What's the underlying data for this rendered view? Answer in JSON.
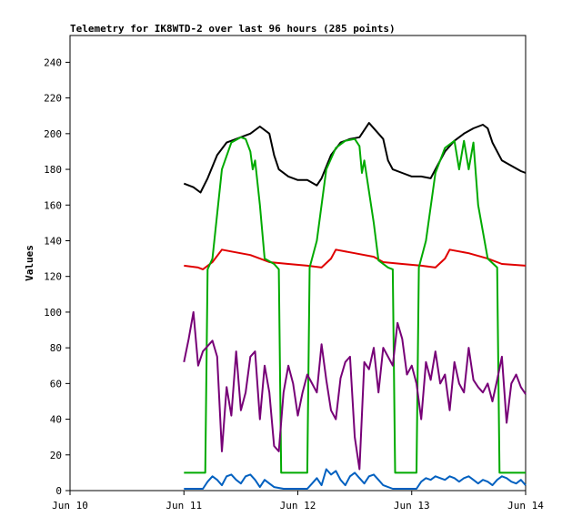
{
  "chart_data": {
    "type": "line",
    "title": "Telemetry for IK8WTD-2 over last 96 hours (285 points)",
    "ylabel": "Values",
    "xlabel": "",
    "ylim": [
      0,
      255
    ],
    "yticks": [
      0,
      20,
      40,
      60,
      80,
      100,
      120,
      140,
      160,
      180,
      200,
      220,
      240
    ],
    "xrange": [
      "2023-06-10T00:00",
      "2023-06-14T00:00"
    ],
    "xticks": [
      {
        "label": "Jun 10",
        "t": "2023-06-10T00:00"
      },
      {
        "label": "Jun 11",
        "t": "2023-06-11T00:00"
      },
      {
        "label": "Jun 12",
        "t": "2023-06-12T00:00"
      },
      {
        "label": "Jun 13",
        "t": "2023-06-13T00:00"
      },
      {
        "label": "Jun 14",
        "t": "2023-06-14T00:00"
      }
    ],
    "grid": false,
    "series": [
      {
        "color": "#000000",
        "points": [
          [
            "2023-06-11T00:00",
            172
          ],
          [
            "2023-06-11T02:00",
            170
          ],
          [
            "2023-06-11T03:30",
            167
          ],
          [
            "2023-06-11T05:00",
            175
          ],
          [
            "2023-06-11T07:00",
            188
          ],
          [
            "2023-06-11T09:00",
            195
          ],
          [
            "2023-06-11T11:00",
            197
          ],
          [
            "2023-06-11T14:00",
            200
          ],
          [
            "2023-06-11T16:00",
            204
          ],
          [
            "2023-06-11T18:00",
            200
          ],
          [
            "2023-06-11T19:00",
            188
          ],
          [
            "2023-06-11T20:00",
            180
          ],
          [
            "2023-06-11T22:00",
            176
          ],
          [
            "2023-06-12T00:00",
            174
          ],
          [
            "2023-06-12T02:00",
            174
          ],
          [
            "2023-06-12T04:00",
            171
          ],
          [
            "2023-06-12T05:00",
            175
          ],
          [
            "2023-06-12T07:00",
            188
          ],
          [
            "2023-06-12T09:00",
            195
          ],
          [
            "2023-06-12T11:00",
            197
          ],
          [
            "2023-06-12T13:00",
            198
          ],
          [
            "2023-06-12T15:00",
            206
          ],
          [
            "2023-06-12T17:00",
            200
          ],
          [
            "2023-06-12T18:00",
            197
          ],
          [
            "2023-06-12T19:00",
            185
          ],
          [
            "2023-06-12T20:00",
            180
          ],
          [
            "2023-06-12T22:00",
            178
          ],
          [
            "2023-06-13T00:00",
            176
          ],
          [
            "2023-06-13T02:00",
            176
          ],
          [
            "2023-06-13T04:00",
            175
          ],
          [
            "2023-06-13T05:00",
            180
          ],
          [
            "2023-06-13T07:00",
            190
          ],
          [
            "2023-06-13T09:00",
            196
          ],
          [
            "2023-06-13T11:00",
            200
          ],
          [
            "2023-06-13T13:00",
            203
          ],
          [
            "2023-06-13T15:00",
            205
          ],
          [
            "2023-06-13T16:00",
            203
          ],
          [
            "2023-06-13T17:00",
            195
          ],
          [
            "2023-06-13T19:00",
            185
          ],
          [
            "2023-06-13T21:00",
            182
          ],
          [
            "2023-06-13T23:00",
            179
          ],
          [
            "2023-06-14T00:00",
            178
          ]
        ]
      },
      {
        "color": "#e00000",
        "points": [
          [
            "2023-06-11T00:00",
            126
          ],
          [
            "2023-06-11T03:00",
            125
          ],
          [
            "2023-06-11T04:00",
            124
          ],
          [
            "2023-06-11T06:00",
            128
          ],
          [
            "2023-06-11T08:00",
            135
          ],
          [
            "2023-06-11T10:00",
            134
          ],
          [
            "2023-06-11T14:00",
            132
          ],
          [
            "2023-06-11T16:00",
            130
          ],
          [
            "2023-06-11T18:00",
            128
          ],
          [
            "2023-06-11T22:00",
            127
          ],
          [
            "2023-06-12T02:00",
            126
          ],
          [
            "2023-06-12T05:00",
            125
          ],
          [
            "2023-06-12T07:00",
            130
          ],
          [
            "2023-06-12T08:00",
            135
          ],
          [
            "2023-06-12T12:00",
            133
          ],
          [
            "2023-06-12T16:00",
            131
          ],
          [
            "2023-06-12T18:00",
            128
          ],
          [
            "2023-06-12T22:00",
            127
          ],
          [
            "2023-06-13T02:00",
            126
          ],
          [
            "2023-06-13T05:00",
            125
          ],
          [
            "2023-06-13T07:00",
            130
          ],
          [
            "2023-06-13T08:00",
            135
          ],
          [
            "2023-06-13T12:00",
            133
          ],
          [
            "2023-06-13T16:00",
            130
          ],
          [
            "2023-06-13T19:00",
            127
          ],
          [
            "2023-06-14T00:00",
            126
          ]
        ]
      },
      {
        "color": "#00aa00",
        "points": [
          [
            "2023-06-11T00:00",
            10
          ],
          [
            "2023-06-11T04:30",
            10
          ],
          [
            "2023-06-11T05:00",
            124
          ],
          [
            "2023-06-11T06:00",
            130
          ],
          [
            "2023-06-11T08:00",
            180
          ],
          [
            "2023-06-11T10:00",
            195
          ],
          [
            "2023-06-11T12:00",
            198
          ],
          [
            "2023-06-11T13:00",
            197
          ],
          [
            "2023-06-11T14:00",
            190
          ],
          [
            "2023-06-11T14:30",
            180
          ],
          [
            "2023-06-11T15:00",
            185
          ],
          [
            "2023-06-11T16:00",
            160
          ],
          [
            "2023-06-11T17:00",
            130
          ],
          [
            "2023-06-11T19:00",
            127
          ],
          [
            "2023-06-11T20:00",
            124
          ],
          [
            "2023-06-11T20:30",
            10
          ],
          [
            "2023-06-12T02:00",
            10
          ],
          [
            "2023-06-12T02:30",
            125
          ],
          [
            "2023-06-12T04:00",
            140
          ],
          [
            "2023-06-12T06:00",
            180
          ],
          [
            "2023-06-12T08:00",
            192
          ],
          [
            "2023-06-12T10:00",
            196
          ],
          [
            "2023-06-12T12:00",
            197
          ],
          [
            "2023-06-12T13:00",
            193
          ],
          [
            "2023-06-12T13:30",
            178
          ],
          [
            "2023-06-12T14:00",
            185
          ],
          [
            "2023-06-12T16:00",
            150
          ],
          [
            "2023-06-12T17:00",
            129
          ],
          [
            "2023-06-12T19:00",
            125
          ],
          [
            "2023-06-12T20:00",
            124
          ],
          [
            "2023-06-12T20:30",
            10
          ],
          [
            "2023-06-13T01:00",
            10
          ],
          [
            "2023-06-13T01:30",
            125
          ],
          [
            "2023-06-13T03:00",
            140
          ],
          [
            "2023-06-13T05:00",
            178
          ],
          [
            "2023-06-13T07:00",
            192
          ],
          [
            "2023-06-13T09:00",
            196
          ],
          [
            "2023-06-13T10:00",
            180
          ],
          [
            "2023-06-13T11:00",
            196
          ],
          [
            "2023-06-13T12:00",
            180
          ],
          [
            "2023-06-13T13:00",
            195
          ],
          [
            "2023-06-13T14:00",
            160
          ],
          [
            "2023-06-13T16:00",
            130
          ],
          [
            "2023-06-13T18:00",
            125
          ],
          [
            "2023-06-13T18:30",
            10
          ],
          [
            "2023-06-14T00:00",
            10
          ]
        ]
      },
      {
        "color": "#770077",
        "points": [
          [
            "2023-06-11T00:00",
            72
          ],
          [
            "2023-06-11T01:00",
            85
          ],
          [
            "2023-06-11T02:00",
            100
          ],
          [
            "2023-06-11T03:00",
            70
          ],
          [
            "2023-06-11T04:00",
            78
          ],
          [
            "2023-06-11T06:00",
            84
          ],
          [
            "2023-06-11T07:00",
            75
          ],
          [
            "2023-06-11T08:00",
            22
          ],
          [
            "2023-06-11T09:00",
            58
          ],
          [
            "2023-06-11T10:00",
            42
          ],
          [
            "2023-06-11T11:00",
            78
          ],
          [
            "2023-06-11T12:00",
            45
          ],
          [
            "2023-06-11T13:00",
            55
          ],
          [
            "2023-06-11T14:00",
            75
          ],
          [
            "2023-06-11T15:00",
            78
          ],
          [
            "2023-06-11T16:00",
            40
          ],
          [
            "2023-06-11T17:00",
            70
          ],
          [
            "2023-06-11T18:00",
            55
          ],
          [
            "2023-06-11T19:00",
            25
          ],
          [
            "2023-06-11T20:00",
            22
          ],
          [
            "2023-06-11T21:00",
            55
          ],
          [
            "2023-06-11T22:00",
            70
          ],
          [
            "2023-06-11T23:00",
            60
          ],
          [
            "2023-06-12T00:00",
            42
          ],
          [
            "2023-06-12T01:00",
            55
          ],
          [
            "2023-06-12T02:00",
            65
          ],
          [
            "2023-06-12T03:00",
            60
          ],
          [
            "2023-06-12T04:00",
            55
          ],
          [
            "2023-06-12T05:00",
            82
          ],
          [
            "2023-06-12T06:00",
            62
          ],
          [
            "2023-06-12T07:00",
            45
          ],
          [
            "2023-06-12T08:00",
            40
          ],
          [
            "2023-06-12T09:00",
            63
          ],
          [
            "2023-06-12T10:00",
            72
          ],
          [
            "2023-06-12T11:00",
            75
          ],
          [
            "2023-06-12T12:00",
            30
          ],
          [
            "2023-06-12T13:00",
            12
          ],
          [
            "2023-06-12T14:00",
            72
          ],
          [
            "2023-06-12T15:00",
            68
          ],
          [
            "2023-06-12T16:00",
            80
          ],
          [
            "2023-06-12T17:00",
            55
          ],
          [
            "2023-06-12T18:00",
            80
          ],
          [
            "2023-06-12T19:00",
            75
          ],
          [
            "2023-06-12T20:00",
            70
          ],
          [
            "2023-06-12T21:00",
            94
          ],
          [
            "2023-06-12T22:00",
            85
          ],
          [
            "2023-06-12T23:00",
            65
          ],
          [
            "2023-06-13T00:00",
            70
          ],
          [
            "2023-06-13T01:00",
            60
          ],
          [
            "2023-06-13T02:00",
            40
          ],
          [
            "2023-06-13T03:00",
            72
          ],
          [
            "2023-06-13T04:00",
            62
          ],
          [
            "2023-06-13T05:00",
            78
          ],
          [
            "2023-06-13T06:00",
            60
          ],
          [
            "2023-06-13T07:00",
            65
          ],
          [
            "2023-06-13T08:00",
            45
          ],
          [
            "2023-06-13T09:00",
            72
          ],
          [
            "2023-06-13T10:00",
            60
          ],
          [
            "2023-06-13T11:00",
            55
          ],
          [
            "2023-06-13T12:00",
            80
          ],
          [
            "2023-06-13T13:00",
            62
          ],
          [
            "2023-06-13T14:00",
            58
          ],
          [
            "2023-06-13T15:00",
            55
          ],
          [
            "2023-06-13T16:00",
            60
          ],
          [
            "2023-06-13T17:00",
            50
          ],
          [
            "2023-06-13T18:00",
            62
          ],
          [
            "2023-06-13T19:00",
            75
          ],
          [
            "2023-06-13T20:00",
            38
          ],
          [
            "2023-06-13T21:00",
            60
          ],
          [
            "2023-06-13T22:00",
            65
          ],
          [
            "2023-06-13T23:00",
            58
          ],
          [
            "2023-06-14T00:00",
            54
          ]
        ]
      },
      {
        "color": "#0060c0",
        "points": [
          [
            "2023-06-11T00:00",
            1
          ],
          [
            "2023-06-11T04:00",
            1
          ],
          [
            "2023-06-11T05:00",
            5
          ],
          [
            "2023-06-11T06:00",
            8
          ],
          [
            "2023-06-11T07:00",
            6
          ],
          [
            "2023-06-11T08:00",
            3
          ],
          [
            "2023-06-11T09:00",
            8
          ],
          [
            "2023-06-11T10:00",
            9
          ],
          [
            "2023-06-11T11:00",
            6
          ],
          [
            "2023-06-11T12:00",
            4
          ],
          [
            "2023-06-11T13:00",
            8
          ],
          [
            "2023-06-11T14:00",
            9
          ],
          [
            "2023-06-11T15:00",
            6
          ],
          [
            "2023-06-11T16:00",
            2
          ],
          [
            "2023-06-11T17:00",
            6
          ],
          [
            "2023-06-11T18:00",
            4
          ],
          [
            "2023-06-11T19:00",
            2
          ],
          [
            "2023-06-11T21:00",
            1
          ],
          [
            "2023-06-12T02:00",
            1
          ],
          [
            "2023-06-12T03:00",
            4
          ],
          [
            "2023-06-12T04:00",
            7
          ],
          [
            "2023-06-12T05:00",
            3
          ],
          [
            "2023-06-12T06:00",
            12
          ],
          [
            "2023-06-12T07:00",
            9
          ],
          [
            "2023-06-12T08:00",
            11
          ],
          [
            "2023-06-12T09:00",
            6
          ],
          [
            "2023-06-12T10:00",
            3
          ],
          [
            "2023-06-12T11:00",
            8
          ],
          [
            "2023-06-12T12:00",
            10
          ],
          [
            "2023-06-12T13:00",
            7
          ],
          [
            "2023-06-12T14:00",
            4
          ],
          [
            "2023-06-12T15:00",
            8
          ],
          [
            "2023-06-12T16:00",
            9
          ],
          [
            "2023-06-12T17:00",
            6
          ],
          [
            "2023-06-12T18:00",
            3
          ],
          [
            "2023-06-12T20:00",
            1
          ],
          [
            "2023-06-13T01:00",
            1
          ],
          [
            "2023-06-13T02:00",
            5
          ],
          [
            "2023-06-13T03:00",
            7
          ],
          [
            "2023-06-13T04:00",
            6
          ],
          [
            "2023-06-13T05:00",
            8
          ],
          [
            "2023-06-13T06:00",
            7
          ],
          [
            "2023-06-13T07:00",
            6
          ],
          [
            "2023-06-13T08:00",
            8
          ],
          [
            "2023-06-13T09:00",
            7
          ],
          [
            "2023-06-13T10:00",
            5
          ],
          [
            "2023-06-13T11:00",
            7
          ],
          [
            "2023-06-13T12:00",
            8
          ],
          [
            "2023-06-13T13:00",
            6
          ],
          [
            "2023-06-13T14:00",
            4
          ],
          [
            "2023-06-13T15:00",
            6
          ],
          [
            "2023-06-13T16:00",
            5
          ],
          [
            "2023-06-13T17:00",
            3
          ],
          [
            "2023-06-13T18:00",
            6
          ],
          [
            "2023-06-13T19:00",
            8
          ],
          [
            "2023-06-13T20:00",
            7
          ],
          [
            "2023-06-13T21:00",
            5
          ],
          [
            "2023-06-13T22:00",
            4
          ],
          [
            "2023-06-13T23:00",
            6
          ],
          [
            "2023-06-14T00:00",
            3
          ]
        ]
      }
    ]
  }
}
